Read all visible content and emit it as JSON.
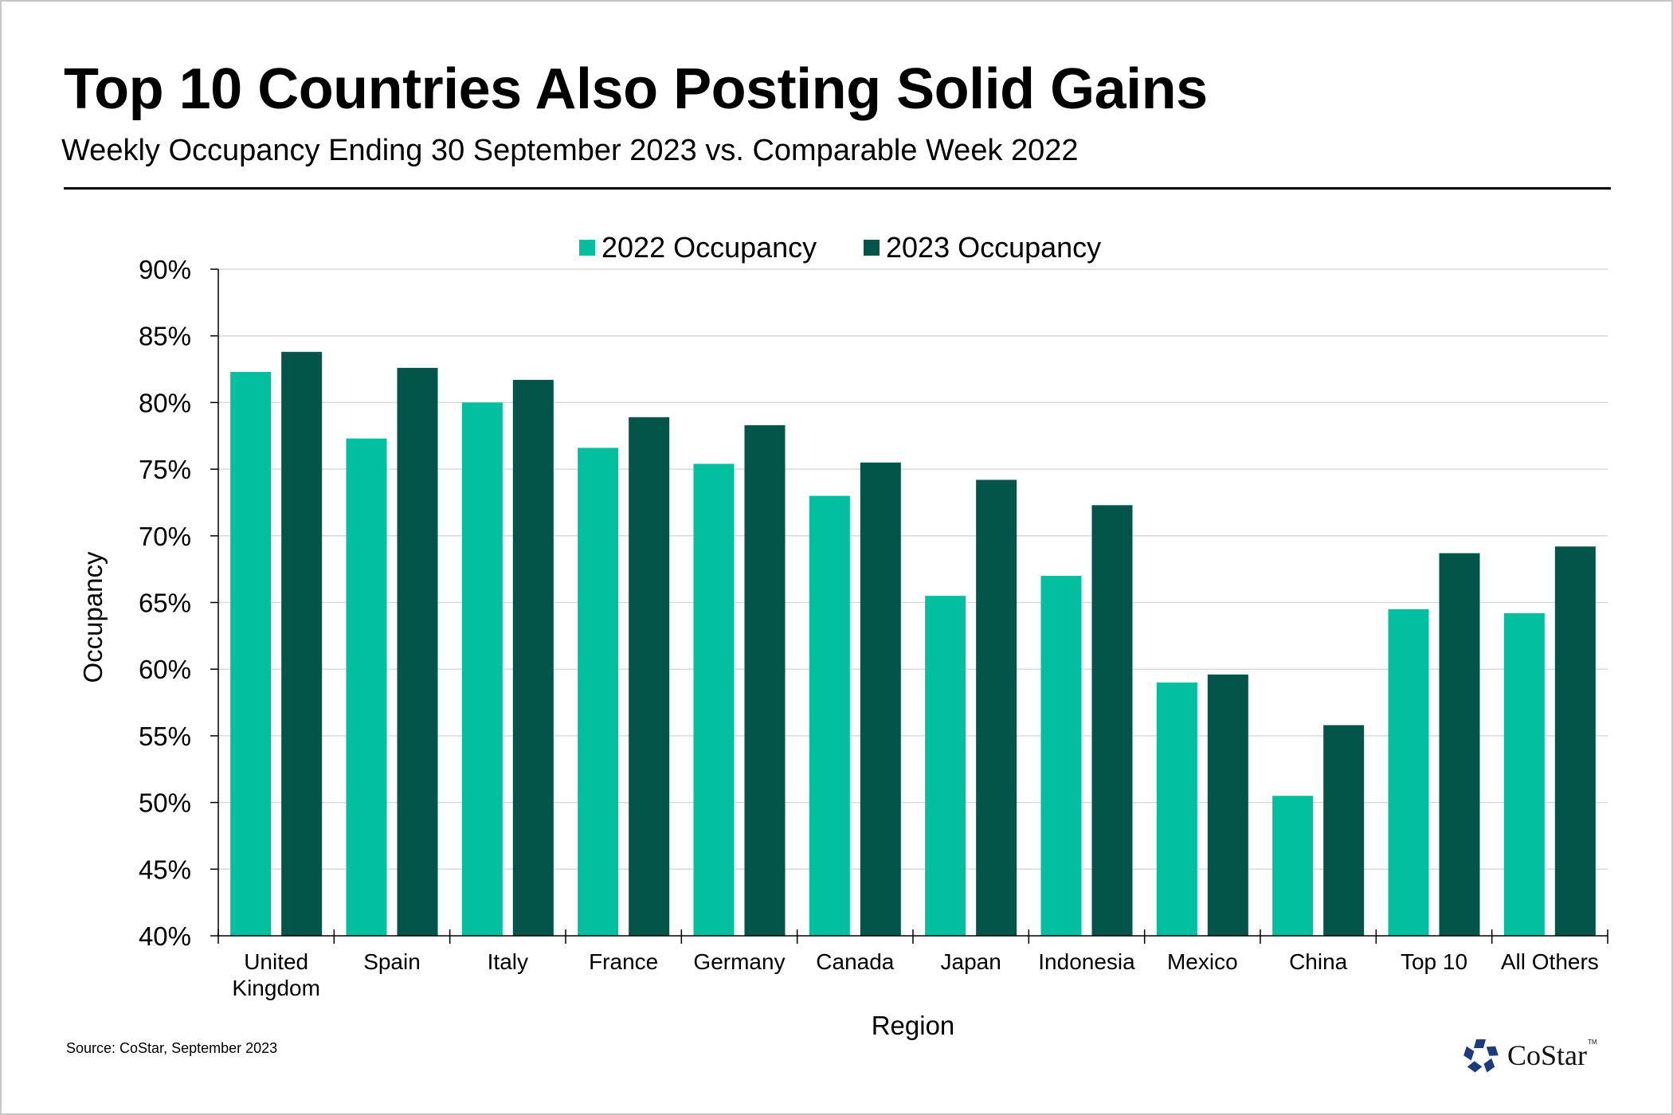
{
  "header": {
    "title": "Top 10 Countries Also Posting Solid Gains",
    "subtitle": "Weekly Occupancy Ending 30 September 2023 vs. Comparable Week 2022"
  },
  "footer": {
    "source": "Source: CoStar, September 2023",
    "logo_text": "CoStar",
    "logo_tm": "TM",
    "logo_icon": "costar-star-icon",
    "logo_color": "#1F3A7A"
  },
  "chart_data": {
    "type": "bar",
    "title": "Top 10 Countries Also Posting Solid Gains",
    "subtitle": "Weekly Occupancy Ending 30 September 2023 vs. Comparable Week 2022",
    "xlabel": "Region",
    "ylabel": "Occupancy",
    "categories": [
      [
        "United",
        "Kingdom"
      ],
      [
        "Spain"
      ],
      [
        "Italy"
      ],
      [
        "France"
      ],
      [
        "Germany"
      ],
      [
        "Canada"
      ],
      [
        "Japan"
      ],
      [
        "Indonesia"
      ],
      [
        "Mexico"
      ],
      [
        "China"
      ],
      [
        "Top 10"
      ],
      [
        "All Others"
      ]
    ],
    "series": [
      {
        "name": "2022 Occupancy",
        "color": "#02BF9F",
        "values": [
          82.3,
          77.3,
          80.0,
          76.6,
          75.4,
          73.0,
          65.5,
          67.0,
          59.0,
          50.5,
          64.5,
          64.2
        ]
      },
      {
        "name": "2023 Occupancy",
        "color": "#03554A",
        "values": [
          83.8,
          82.6,
          81.7,
          78.9,
          78.3,
          75.5,
          74.2,
          72.3,
          59.6,
          55.8,
          68.7,
          69.2
        ]
      }
    ],
    "ylim": [
      40,
      90
    ],
    "yticks": [
      40,
      45,
      50,
      55,
      60,
      65,
      70,
      75,
      80,
      85,
      90
    ],
    "ytick_suffix": "%",
    "grid": true,
    "gridline_color": "#D9D9D9",
    "legend_position": "top-center"
  }
}
